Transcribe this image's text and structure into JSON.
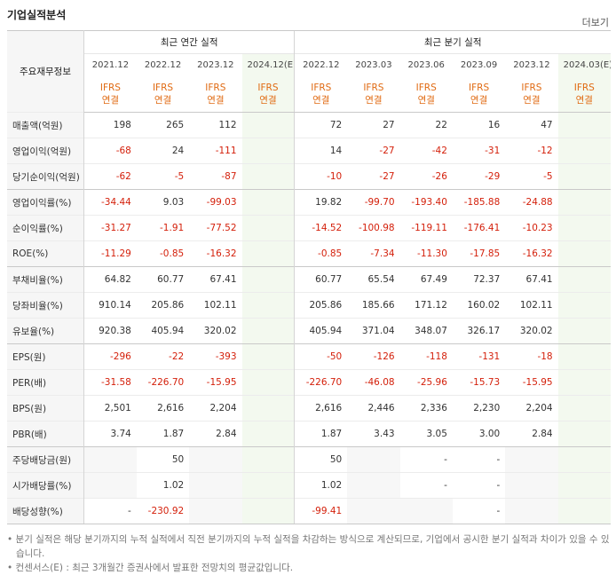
{
  "header": {
    "title": "기업실적분석",
    "more": "더보기"
  },
  "table": {
    "corner": "주요재무정보",
    "groups": [
      "최근 연간 실적",
      "최근 분기 실적"
    ],
    "periods": [
      [
        "2021.12",
        "2022.12",
        "2023.12",
        "2024.12(E)"
      ],
      [
        "2022.12",
        "2023.03",
        "2023.06",
        "2023.09",
        "2023.12",
        "2024.03(E)"
      ]
    ],
    "estimate_columns": [
      3,
      9
    ],
    "standards": [
      [
        "IFRS",
        "연결"
      ],
      [
        "IFRS",
        "연결"
      ],
      [
        "IFRS",
        "연결"
      ],
      [
        "IFRS",
        "연결"
      ],
      [
        "IFRS",
        "연결"
      ],
      [
        "IFRS",
        "연결"
      ],
      [
        "IFRS",
        "연결"
      ],
      [
        "IFRS",
        "연결"
      ],
      [
        "IFRS",
        "연결"
      ],
      [
        "IFRS",
        "연결"
      ]
    ],
    "group_breaks": [
      3,
      6,
      9,
      13
    ],
    "rows": [
      {
        "label": "매출액(억원)",
        "cells": [
          "198",
          "265",
          "112",
          null,
          "72",
          "27",
          "22",
          "16",
          "47",
          null
        ]
      },
      {
        "label": "영업이익(억원)",
        "cells": [
          "-68",
          "24",
          "-111",
          null,
          "14",
          "-27",
          "-42",
          "-31",
          "-12",
          null
        ]
      },
      {
        "label": "당기순이익(억원)",
        "cells": [
          "-62",
          "-5",
          "-87",
          null,
          "-10",
          "-27",
          "-26",
          "-29",
          "-5",
          null
        ]
      },
      {
        "label": "영업이익률(%)",
        "cells": [
          "-34.44",
          "9.03",
          "-99.03",
          null,
          "19.82",
          "-99.70",
          "-193.40",
          "-185.88",
          "-24.88",
          null
        ]
      },
      {
        "label": "순이익률(%)",
        "cells": [
          "-31.27",
          "-1.91",
          "-77.52",
          null,
          "-14.52",
          "-100.98",
          "-119.11",
          "-176.41",
          "-10.23",
          null
        ]
      },
      {
        "label": "ROE(%)",
        "cells": [
          "-11.29",
          "-0.85",
          "-16.32",
          null,
          "-0.85",
          "-7.34",
          "-11.30",
          "-17.85",
          "-16.32",
          null
        ]
      },
      {
        "label": "부채비율(%)",
        "cells": [
          "64.82",
          "60.77",
          "67.41",
          null,
          "60.77",
          "65.54",
          "67.49",
          "72.37",
          "67.41",
          null
        ]
      },
      {
        "label": "당좌비율(%)",
        "cells": [
          "910.14",
          "205.86",
          "102.11",
          null,
          "205.86",
          "185.66",
          "171.12",
          "160.02",
          "102.11",
          null
        ]
      },
      {
        "label": "유보율(%)",
        "cells": [
          "920.38",
          "405.94",
          "320.02",
          null,
          "405.94",
          "371.04",
          "348.07",
          "326.17",
          "320.02",
          null
        ]
      },
      {
        "label": "EPS(원)",
        "cells": [
          "-296",
          "-22",
          "-393",
          null,
          "-50",
          "-126",
          "-118",
          "-131",
          "-18",
          null
        ]
      },
      {
        "label": "PER(배)",
        "cells": [
          "-31.58",
          "-226.70",
          "-15.95",
          null,
          "-226.70",
          "-46.08",
          "-25.96",
          "-15.73",
          "-15.95",
          null
        ]
      },
      {
        "label": "BPS(원)",
        "cells": [
          "2,501",
          "2,616",
          "2,204",
          null,
          "2,616",
          "2,446",
          "2,336",
          "2,230",
          "2,204",
          null
        ]
      },
      {
        "label": "PBR(배)",
        "cells": [
          "3.74",
          "1.87",
          "2.84",
          null,
          "1.87",
          "3.43",
          "3.05",
          "3.00",
          "2.84",
          null
        ]
      },
      {
        "label": "주당배당금(원)",
        "cells": [
          null,
          "50",
          null,
          null,
          "50",
          null,
          "-",
          "-",
          null,
          null
        ]
      },
      {
        "label": "시가배당률(%)",
        "cells": [
          null,
          "1.02",
          null,
          null,
          "1.02",
          null,
          "-",
          "-",
          null,
          null
        ]
      },
      {
        "label": "배당성향(%)",
        "cells": [
          "-",
          "-230.92",
          null,
          null,
          "-99.41",
          null,
          null,
          "-",
          null,
          null
        ]
      }
    ]
  },
  "notes": [
    "분기 실적은 해당 분기까지의 누적 실적에서 직전 분기까지의 누적 실적을 차감하는 방식으로 계산되므로, 기업에서 공시한 분기 실적과 차이가 있을 수 있습니다.",
    "컨센서스(E) : 최근 3개월간 증권사에서 발표한 전망치의 평균값입니다."
  ]
}
